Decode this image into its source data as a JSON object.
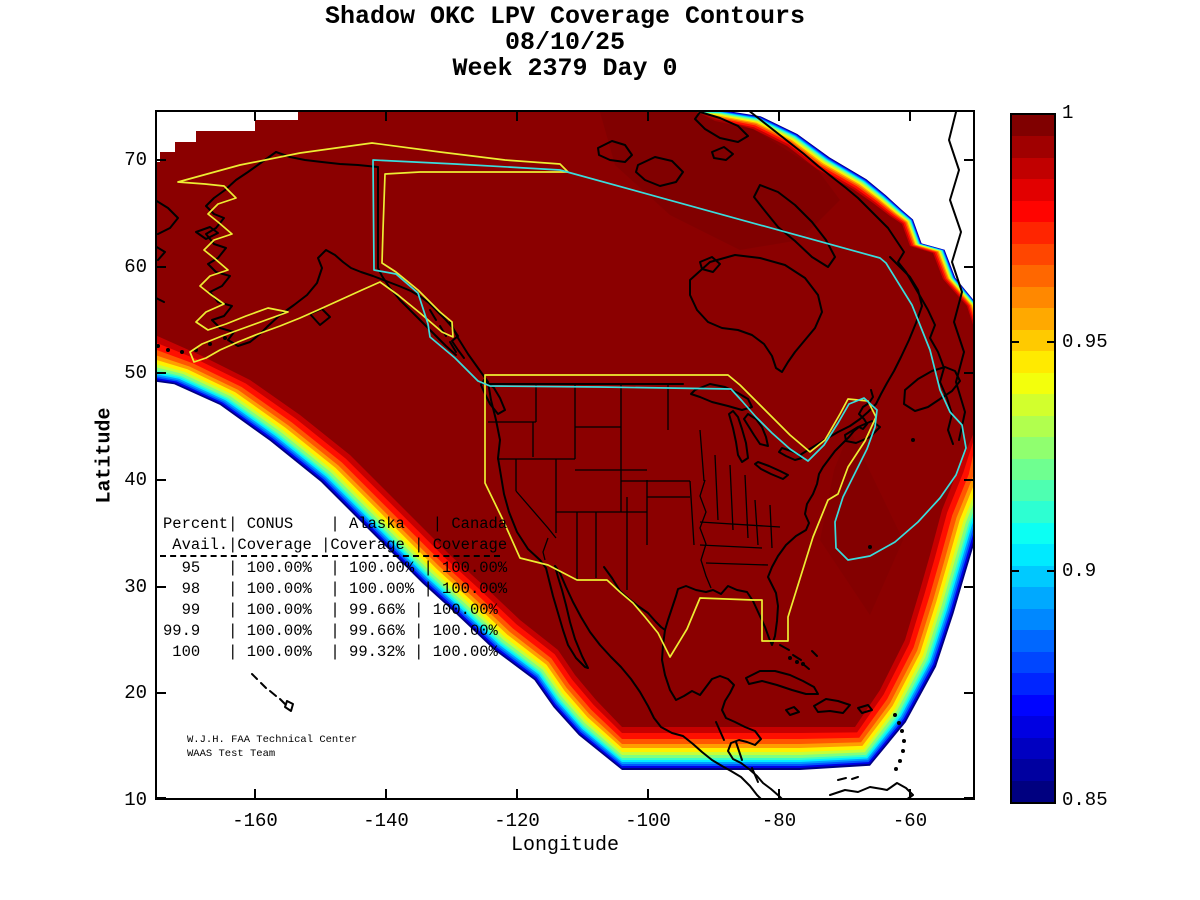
{
  "title": {
    "line1": "Shadow OKC LPV Coverage Contours",
    "line2": "08/10/25",
    "line3": "Week 2379 Day 0"
  },
  "axes": {
    "xlabel": "Longitude",
    "ylabel": "Latitude",
    "xticks": [
      "-160",
      "-140",
      "-120",
      "-100",
      "-80",
      "-60"
    ],
    "yticks": [
      "70",
      "60",
      "50",
      "40",
      "30",
      "20",
      "10"
    ]
  },
  "colorbar": {
    "ticks": [
      "1",
      "0.95",
      "0.9",
      "0.85"
    ]
  },
  "overlay_table": {
    "lines": [
      "Percent| CONUS    | Alaska   | Canada",
      " Avail.|Coverage |Coverage | Coverage",
      "  95   | 100.00%  | 100.00% | 100.00%",
      "  98   | 100.00%  | 100.00% | 100.00%",
      "  99   | 100.00%  | 99.66% | 100.00%",
      "99.9   | 100.00%  | 99.66% | 100.00%",
      " 100   | 100.00%  | 99.32% | 100.00%"
    ]
  },
  "footer": {
    "line1": "W.J.H. FAA Technical Center",
    "line2": "WAAS Test Team"
  },
  "chart_data": {
    "type": "heatmap",
    "subtype": "filled_contour_coverage_map",
    "title": "Shadow OKC LPV Coverage Contours",
    "date": "08/10/25",
    "gps_week": 2379,
    "gps_day": 0,
    "xlabel": "Longitude",
    "ylabel": "Latitude",
    "xlim": [
      -175,
      -50
    ],
    "ylim": [
      10,
      75
    ],
    "xticks": [
      -160,
      -140,
      -120,
      -100,
      -80,
      -60
    ],
    "yticks": [
      10,
      20,
      30,
      40,
      50,
      60,
      70
    ],
    "grid": false,
    "colorbar": {
      "label_values": [
        1,
        0.95,
        0.9,
        0.85
      ],
      "range": [
        0.85,
        1.0
      ],
      "colormap": "jet",
      "orientation": "vertical",
      "position": "right"
    },
    "contour_description": "LPV coverage availability contours over North America; deep red region (value 1.0) covers nearly all of CONUS, Alaska and Canada, with jet-colormap fringe bands (1.0 down to 0.85) along the Pacific southwest edge, the southern edge near latitude 17, and the Atlantic east edge; white = below 0.85 / outside coverage",
    "region_outlines": [
      {
        "name": "CONUS service volume",
        "color": "yellow"
      },
      {
        "name": "Alaska service volume",
        "color": "yellow"
      },
      {
        "name": "Canada service volume",
        "color": "cyan"
      },
      {
        "name": "coastlines and state boundaries",
        "color": "black"
      }
    ],
    "coverage_table": {
      "columns": [
        "Percent Avail.",
        "CONUS Coverage",
        "Alaska Coverage",
        "Canada Coverage"
      ],
      "rows": [
        [
          "95",
          "100.00%",
          "100.00%",
          "100.00%"
        ],
        [
          "98",
          "100.00%",
          "100.00%",
          "100.00%"
        ],
        [
          "99",
          "100.00%",
          "99.66%",
          "100.00%"
        ],
        [
          "99.9",
          "100.00%",
          "99.66%",
          "100.00%"
        ],
        [
          "100",
          "100.00%",
          "99.32%",
          "100.00%"
        ]
      ]
    },
    "annotations": [
      "W.J.H. FAA Technical Center",
      "WAAS Test Team"
    ],
    "accent_colors": {
      "max_coverage_fill": "#8B0000",
      "conus_alaska_outline": "#EDED33",
      "canada_outline": "#3ADCDC"
    }
  }
}
